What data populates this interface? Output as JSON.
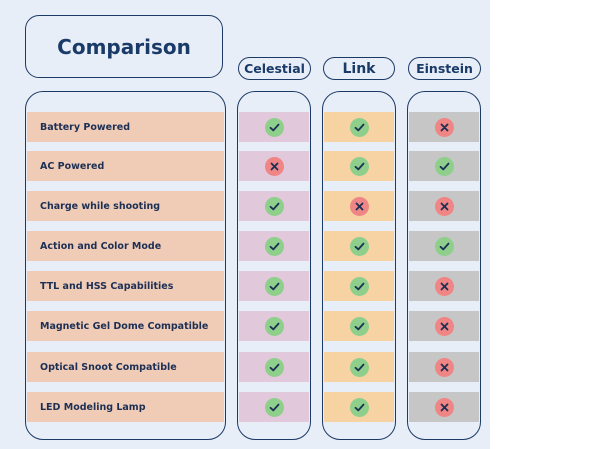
{
  "title": "Comparison",
  "columns": [
    "Celestial",
    "Link",
    "Einstein"
  ],
  "rows": [
    {
      "feature": "Battery Powered",
      "values": [
        "check",
        "check",
        "cross"
      ]
    },
    {
      "feature": "AC Powered",
      "values": [
        "cross",
        "check",
        "check"
      ]
    },
    {
      "feature": "Charge while shooting",
      "values": [
        "check",
        "cross",
        "cross"
      ]
    },
    {
      "feature": "Action and Color Mode",
      "values": [
        "check",
        "check",
        "check"
      ]
    },
    {
      "feature": "TTL and HSS Capabilities",
      "values": [
        "check",
        "check",
        "cross"
      ]
    },
    {
      "feature": "Magnetic Gel Dome Compatible",
      "values": [
        "check",
        "check",
        "cross"
      ]
    },
    {
      "feature": "Optical Snoot Compatible",
      "values": [
        "check",
        "check",
        "cross"
      ]
    },
    {
      "feature": "LED Modeling Lamp",
      "values": [
        "check",
        "check",
        "cross"
      ]
    }
  ],
  "icons": {
    "check": "check-icon",
    "cross": "cross-icon"
  },
  "colors": {
    "outline": "#1c3a66",
    "feature_bg": "#f0ccb6",
    "celestial_bg": "#e1c8da",
    "link_bg": "#f7d2a3",
    "einstein_bg": "#c6c6c7",
    "check": "#8fcf8c",
    "cross": "#ef8585"
  }
}
